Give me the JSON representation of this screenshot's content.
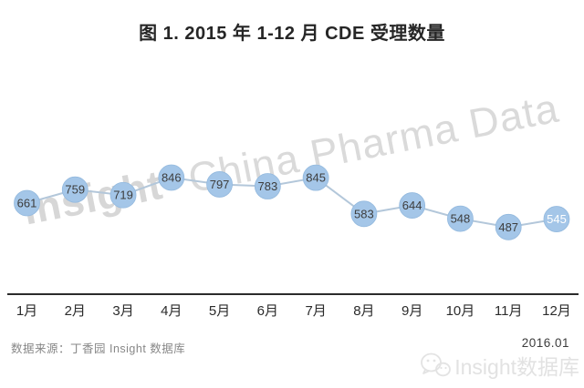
{
  "title": "图 1. 2015 年 1-12 月 CDE 受理数量",
  "watermark": {
    "bold": "Insight",
    "rest": "China Pharma Data"
  },
  "footer": {
    "source": "数据来源：丁香园 Insight 数据库",
    "date": "2016.01",
    "brand": "Insight数据库",
    "brand_icon": "wechat-icon"
  },
  "colors": {
    "point_fill": "#a4c6e8",
    "point_edge": "#93b9de",
    "line": "#b3c7da",
    "label": "#3d3d3d",
    "label_highlight": "#ffffff",
    "axis": "#2b2b2b",
    "tick_label": "#2b2b2b",
    "watermark": "#d7d7d7",
    "brand_watermark": "#e2e2e2"
  },
  "chart_data": {
    "type": "line",
    "title": "图 1. 2015 年 1-12 月 CDE 受理数量",
    "categories": [
      "1月",
      "2月",
      "3月",
      "4月",
      "5月",
      "6月",
      "7月",
      "8月",
      "9月",
      "10月",
      "11月",
      "12月"
    ],
    "values": [
      661,
      759,
      719,
      846,
      797,
      783,
      845,
      583,
      644,
      548,
      487,
      545
    ],
    "xlabel": "",
    "ylabel": "",
    "ylim": [
      0,
      900
    ],
    "grid": false,
    "legend": false,
    "point_labels": true,
    "highlight_index": 11,
    "marker": "circle"
  }
}
